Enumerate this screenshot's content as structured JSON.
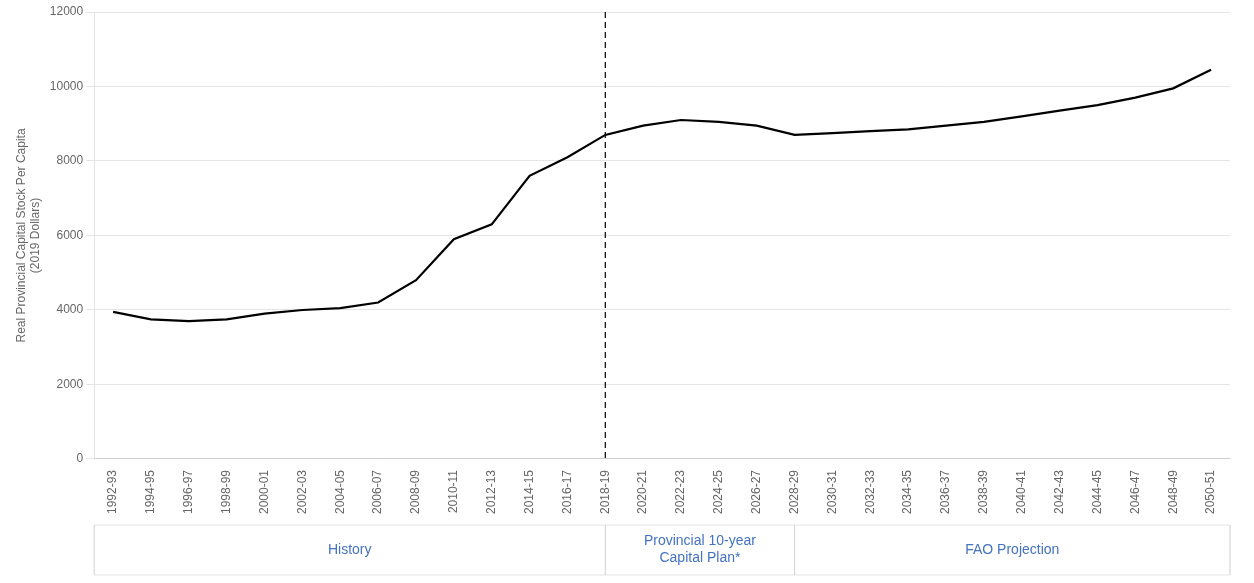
{
  "chart_data": {
    "type": "line",
    "ylabel": "Real Provincial Capital Stock Per Capita\n(2019 Dollars)",
    "categories": [
      "1992-93",
      "1994-95",
      "1996-97",
      "1998-99",
      "2000-01",
      "2002-03",
      "2004-05",
      "2006-07",
      "2008-09",
      "2010-11",
      "2012-13",
      "2014-15",
      "2016-17",
      "2018-19",
      "2020-21",
      "2022-23",
      "2024-25",
      "2026-27",
      "2028-29",
      "2030-31",
      "2032-33",
      "2034-35",
      "2036-37",
      "2038-39",
      "2040-41",
      "2042-43",
      "2044-45",
      "2046-47",
      "2048-49",
      "2050-51"
    ],
    "values": [
      3950,
      3750,
      3700,
      3750,
      3900,
      4000,
      4050,
      4200,
      4800,
      5900,
      6300,
      7600,
      8100,
      8700,
      8950,
      9100,
      9050,
      8950,
      8700,
      8750,
      8800,
      8850,
      8950,
      9050,
      9200,
      9350,
      9500,
      9700,
      9950,
      10450
    ],
    "color": "#000000",
    "ylim": [
      0,
      12000
    ],
    "yticks": [
      0,
      2000,
      4000,
      6000,
      8000,
      10000,
      12000
    ],
    "grid": true,
    "reference_lines": [
      {
        "x": "2018-19",
        "line_style": "dashed",
        "color": "#000000"
      }
    ],
    "annotations": [
      {
        "text": "History",
        "x_from": "1992-93",
        "x_to": "2018-19",
        "color": "#4472c4"
      },
      {
        "text": "Provincial 10-year\nCapital Plan*",
        "x_from": "2018-19",
        "x_to": "2028-29",
        "color": "#4472c4"
      },
      {
        "text": "FAO Projection",
        "x_from": "2028-29",
        "x_to": "2050-51",
        "color": "#4472c4"
      }
    ]
  }
}
